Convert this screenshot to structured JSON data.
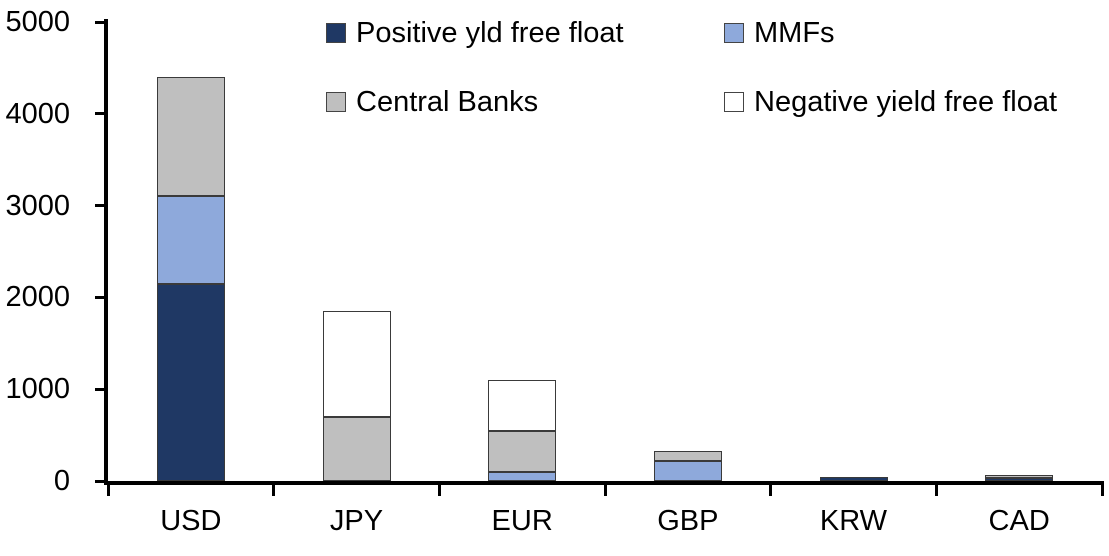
{
  "chart_data": {
    "type": "bar",
    "stacked": true,
    "title": "",
    "xlabel": "",
    "ylabel": "",
    "categories": [
      "USD",
      "JPY",
      "EUR",
      "GBP",
      "KRW",
      "CAD"
    ],
    "series": [
      {
        "name": "Positive yld free float",
        "color": "#1F3864",
        "values": [
          2150,
          0,
          0,
          0,
          40,
          30
        ]
      },
      {
        "name": "MMFs",
        "color": "#8EA9DB",
        "values": [
          950,
          0,
          100,
          220,
          0,
          0
        ]
      },
      {
        "name": "Central Banks",
        "color": "#BFBFBF",
        "values": [
          1300,
          700,
          440,
          110,
          0,
          35
        ]
      },
      {
        "name": "Negative yield free float",
        "color": "#FFFFFF",
        "values": [
          0,
          1150,
          560,
          0,
          0,
          0
        ]
      }
    ],
    "totals": [
      4400,
      1850,
      1100,
      330,
      40,
      65
    ],
    "ylim": [
      0,
      5000
    ],
    "yticks": [
      0,
      1000,
      2000,
      3000,
      4000,
      5000
    ],
    "grid": false,
    "legend_position": "top"
  },
  "legend": {
    "items": [
      {
        "label": "Positive yld free float",
        "color": "#1F3864"
      },
      {
        "label": "MMFs",
        "color": "#8EA9DB"
      },
      {
        "label": "Central Banks",
        "color": "#BFBFBF"
      },
      {
        "label": "Negative yield free float",
        "color": "#FFFFFF"
      }
    ]
  }
}
